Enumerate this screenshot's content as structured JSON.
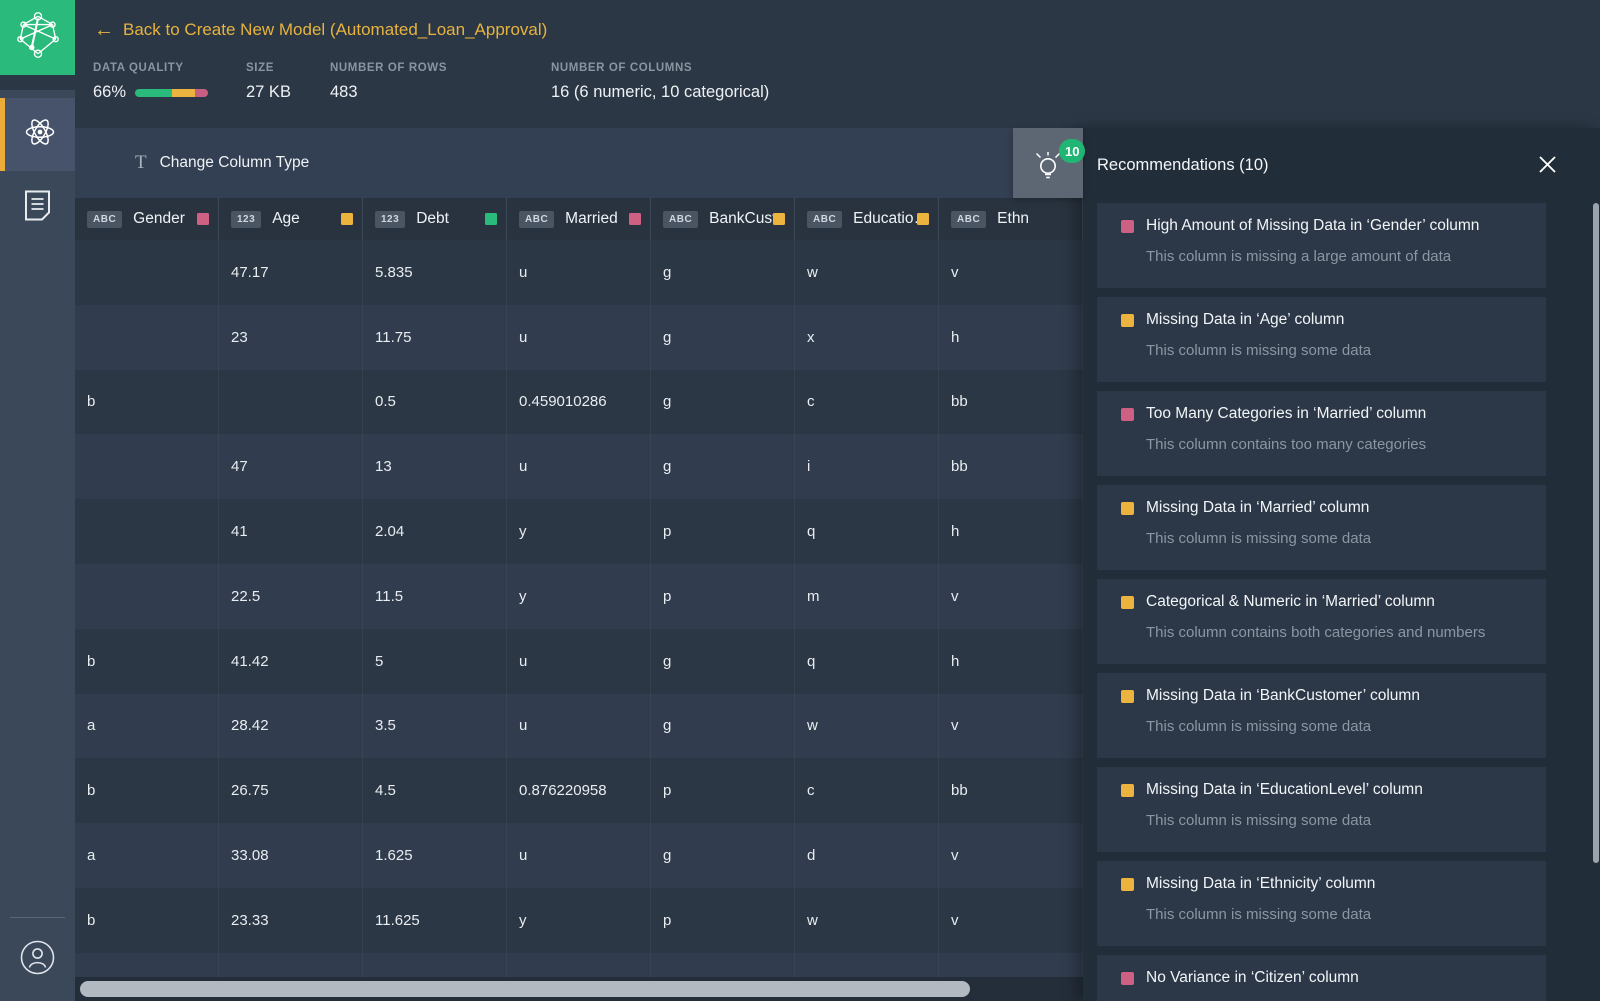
{
  "topbar": {
    "back_arrow": "←",
    "back_link": "Back to Create New Model (Automated_Loan_Approval)",
    "stats": {
      "quality": {
        "label": "DATA QUALITY",
        "value": "66%",
        "segments": [
          {
            "color": "#2abb7c",
            "pct": 51
          },
          {
            "color": "#ecb43e",
            "pct": 31
          },
          {
            "color": "#c75f82",
            "pct": 18
          }
        ]
      },
      "size": {
        "label": "SIZE",
        "value": "27 KB"
      },
      "rows": {
        "label": "NUMBER OF ROWS",
        "value": "483"
      },
      "columns": {
        "label": "NUMBER OF COLUMNS",
        "value": "16 (6 numeric, 10 categorical)"
      }
    }
  },
  "sidebar": {
    "logo_icon": "network-logo",
    "items": [
      {
        "icon": "atom-icon",
        "active": true
      },
      {
        "icon": "document-icon",
        "active": false
      }
    ],
    "footer_icon": "user-icon"
  },
  "toolbar": {
    "type_icon": "T",
    "change_column_type": "Change Column Type"
  },
  "table": {
    "columns": [
      {
        "type": "ABC",
        "name": "Gender",
        "color": "#cd6083"
      },
      {
        "type": "123",
        "name": "Age",
        "color": "#ecb43e"
      },
      {
        "type": "123",
        "name": "Debt",
        "color": "#2abb7c"
      },
      {
        "type": "ABC",
        "name": "Married",
        "color": "#cd6083"
      },
      {
        "type": "ABC",
        "name": "BankCust…",
        "color": "#ecb43e"
      },
      {
        "type": "ABC",
        "name": "Educatio…",
        "color": "#ecb43e"
      },
      {
        "type": "ABC",
        "name": "Ethn",
        "color": null
      }
    ],
    "rows": [
      [
        "",
        "47.17",
        "5.835",
        "u",
        "g",
        "w",
        "v"
      ],
      [
        "",
        "23",
        "11.75",
        "u",
        "g",
        "x",
        "h"
      ],
      [
        "b",
        "",
        "0.5",
        "0.459010286",
        "g",
        "c",
        "bb"
      ],
      [
        "",
        "47",
        "13",
        "u",
        "g",
        "i",
        "bb"
      ],
      [
        "",
        "41",
        "2.04",
        "y",
        "p",
        "q",
        "h"
      ],
      [
        "",
        "22.5",
        "11.5",
        "y",
        "p",
        "m",
        "v"
      ],
      [
        "b",
        "41.42",
        "5",
        "u",
        "g",
        "q",
        "h"
      ],
      [
        "a",
        "28.42",
        "3.5",
        "u",
        "g",
        "w",
        "v"
      ],
      [
        "b",
        "26.75",
        "4.5",
        "0.876220958",
        "p",
        "c",
        "bb"
      ],
      [
        "a",
        "33.08",
        "1.625",
        "u",
        "g",
        "d",
        "v"
      ],
      [
        "b",
        "23.33",
        "11.625",
        "y",
        "p",
        "w",
        "v"
      ]
    ]
  },
  "recommendations": {
    "badge": "10",
    "title": "Recommendations (10)",
    "items": [
      {
        "color": "#cd6083",
        "title": "High Amount of Missing Data in ‘Gender’ column",
        "subtitle": "This column is missing a large amount of data"
      },
      {
        "color": "#ecb43e",
        "title": "Missing Data in ‘Age’ column",
        "subtitle": "This column is missing some data"
      },
      {
        "color": "#cd6083",
        "title": "Too Many Categories in ‘Married’ column",
        "subtitle": "This column contains too many categories"
      },
      {
        "color": "#ecb43e",
        "title": "Missing Data in ‘Married’ column",
        "subtitle": "This column is missing some data"
      },
      {
        "color": "#ecb43e",
        "title": "Categorical & Numeric in ‘Married’ column",
        "subtitle": "This column contains both categories and numbers"
      },
      {
        "color": "#ecb43e",
        "title": "Missing Data in ‘BankCustomer’ column",
        "subtitle": "This column is missing some data"
      },
      {
        "color": "#ecb43e",
        "title": "Missing Data in ‘EducationLevel’ column",
        "subtitle": "This column is missing some data"
      },
      {
        "color": "#ecb43e",
        "title": "Missing Data in ‘Ethnicity’ column",
        "subtitle": "This column is missing some data"
      },
      {
        "color": "#cd6083",
        "title": "No Variance in ‘Citizen’ column",
        "subtitle": ""
      }
    ]
  },
  "colors": {
    "accent_gold": "#e7b33e",
    "brand_green": "#2abb7c",
    "severity_pink": "#cd6083",
    "severity_yellow": "#ecb43e",
    "badge_green": "#21b573"
  }
}
